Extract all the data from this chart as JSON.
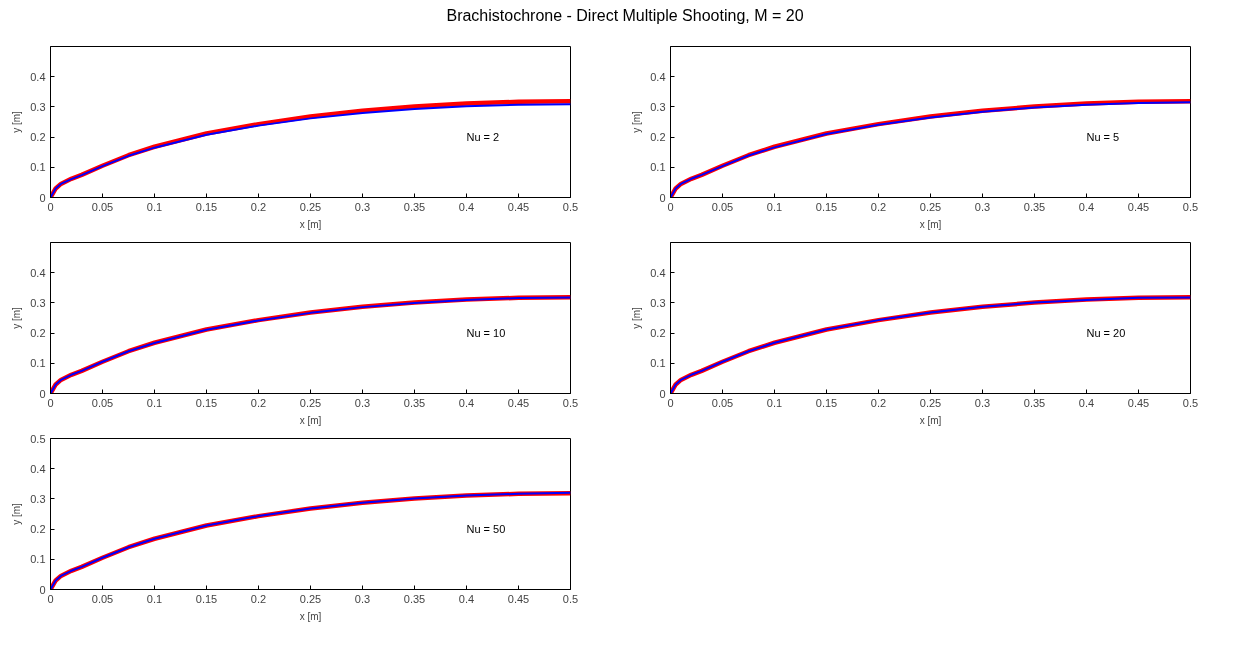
{
  "chart_data": [
    {
      "type": "line",
      "title": "Brachistochrone - Direct Multiple Shooting, M = 20",
      "xlabel": "x [m]",
      "ylabel": "y [m]",
      "annotations": [
        "Nu = 2"
      ],
      "xlim": [
        0,
        0.5
      ],
      "ylim": [
        0,
        0.5
      ],
      "xticks": [
        0,
        0.05,
        0.1,
        0.15,
        0.2,
        0.25,
        0.3,
        0.35,
        0.4,
        0.45,
        0.5
      ],
      "yticks": [
        0,
        0.1,
        0.2,
        0.3,
        0.4
      ],
      "grid": false,
      "x": [
        0,
        0.005,
        0.01,
        0.02,
        0.03,
        0.05,
        0.075,
        0.1,
        0.15,
        0.2,
        0.25,
        0.3,
        0.35,
        0.4,
        0.45,
        0.5
      ],
      "series": [
        {
          "color": "#ff0000",
          "values": [
            0,
            0.03,
            0.045,
            0.062,
            0.075,
            0.105,
            0.14,
            0.168,
            0.212,
            0.243,
            0.268,
            0.287,
            0.301,
            0.311,
            0.317,
            0.319
          ]
        },
        {
          "color": "#0000ff",
          "values": [
            0,
            0.03,
            0.045,
            0.061,
            0.074,
            0.104,
            0.138,
            0.165,
            0.208,
            0.238,
            0.262,
            0.28,
            0.293,
            0.302,
            0.307,
            0.309
          ]
        }
      ]
    },
    {
      "type": "line",
      "xlabel": "x [m]",
      "ylabel": "y [m]",
      "annotations": [
        "Nu = 5"
      ],
      "xlim": [
        0,
        0.5
      ],
      "ylim": [
        0,
        0.5
      ],
      "xticks": [
        0,
        0.05,
        0.1,
        0.15,
        0.2,
        0.25,
        0.3,
        0.35,
        0.4,
        0.45,
        0.5
      ],
      "yticks": [
        0,
        0.1,
        0.2,
        0.3,
        0.4
      ],
      "grid": false,
      "x": [
        0,
        0.005,
        0.01,
        0.02,
        0.03,
        0.05,
        0.075,
        0.1,
        0.15,
        0.2,
        0.25,
        0.3,
        0.35,
        0.4,
        0.45,
        0.5
      ],
      "series": [
        {
          "color": "#ff0000",
          "values": [
            0,
            0.03,
            0.045,
            0.062,
            0.075,
            0.105,
            0.14,
            0.168,
            0.212,
            0.243,
            0.268,
            0.287,
            0.301,
            0.311,
            0.317,
            0.319
          ]
        },
        {
          "color": "#0000ff",
          "values": [
            0,
            0.03,
            0.045,
            0.062,
            0.075,
            0.104,
            0.139,
            0.166,
            0.21,
            0.241,
            0.265,
            0.284,
            0.298,
            0.307,
            0.313,
            0.315
          ]
        }
      ]
    },
    {
      "type": "line",
      "xlabel": "x [m]",
      "ylabel": "y [m]",
      "annotations": [
        "Nu = 10"
      ],
      "xlim": [
        0,
        0.5
      ],
      "ylim": [
        0,
        0.5
      ],
      "xticks": [
        0,
        0.05,
        0.1,
        0.15,
        0.2,
        0.25,
        0.3,
        0.35,
        0.4,
        0.45,
        0.5
      ],
      "yticks": [
        0,
        0.1,
        0.2,
        0.3,
        0.4
      ],
      "grid": false,
      "x": [
        0,
        0.005,
        0.01,
        0.02,
        0.03,
        0.05,
        0.075,
        0.1,
        0.15,
        0.2,
        0.25,
        0.3,
        0.35,
        0.4,
        0.45,
        0.5
      ],
      "series": [
        {
          "color": "#ff0000",
          "values": [
            0,
            0.03,
            0.045,
            0.062,
            0.075,
            0.105,
            0.14,
            0.168,
            0.212,
            0.243,
            0.268,
            0.287,
            0.301,
            0.311,
            0.317,
            0.319
          ]
        },
        {
          "color": "#0000ff",
          "values": [
            0,
            0.03,
            0.045,
            0.062,
            0.075,
            0.105,
            0.14,
            0.167,
            0.211,
            0.242,
            0.267,
            0.286,
            0.3,
            0.31,
            0.316,
            0.318
          ]
        }
      ]
    },
    {
      "type": "line",
      "xlabel": "x [m]",
      "ylabel": "y [m]",
      "annotations": [
        "Nu = 20"
      ],
      "xlim": [
        0,
        0.5
      ],
      "ylim": [
        0,
        0.5
      ],
      "xticks": [
        0,
        0.05,
        0.1,
        0.15,
        0.2,
        0.25,
        0.3,
        0.35,
        0.4,
        0.45,
        0.5
      ],
      "yticks": [
        0,
        0.1,
        0.2,
        0.3,
        0.4
      ],
      "grid": false,
      "x": [
        0,
        0.005,
        0.01,
        0.02,
        0.03,
        0.05,
        0.075,
        0.1,
        0.15,
        0.2,
        0.25,
        0.3,
        0.35,
        0.4,
        0.45,
        0.5
      ],
      "series": [
        {
          "color": "#ff0000",
          "values": [
            0,
            0.03,
            0.045,
            0.062,
            0.075,
            0.105,
            0.14,
            0.168,
            0.212,
            0.243,
            0.268,
            0.287,
            0.301,
            0.311,
            0.317,
            0.319
          ]
        },
        {
          "color": "#0000ff",
          "values": [
            0,
            0.03,
            0.045,
            0.062,
            0.075,
            0.105,
            0.14,
            0.168,
            0.212,
            0.243,
            0.268,
            0.287,
            0.301,
            0.31,
            0.317,
            0.318
          ]
        }
      ]
    },
    {
      "type": "line",
      "xlabel": "x [m]",
      "ylabel": "y [m]",
      "annotations": [
        "Nu = 50"
      ],
      "xlim": [
        0,
        0.5
      ],
      "ylim": [
        0,
        0.5
      ],
      "xticks": [
        0,
        0.05,
        0.1,
        0.15,
        0.2,
        0.25,
        0.3,
        0.35,
        0.4,
        0.45,
        0.5
      ],
      "yticks": [
        0,
        0.1,
        0.2,
        0.3,
        0.4,
        0.5
      ],
      "grid": false,
      "x": [
        0,
        0.005,
        0.01,
        0.02,
        0.03,
        0.05,
        0.075,
        0.1,
        0.15,
        0.2,
        0.25,
        0.3,
        0.35,
        0.4,
        0.45,
        0.5
      ],
      "series": [
        {
          "color": "#ff0000",
          "values": [
            0,
            0.03,
            0.045,
            0.062,
            0.075,
            0.105,
            0.14,
            0.168,
            0.212,
            0.243,
            0.268,
            0.287,
            0.301,
            0.311,
            0.317,
            0.319
          ]
        },
        {
          "color": "#0000ff",
          "values": [
            0,
            0.03,
            0.045,
            0.062,
            0.075,
            0.105,
            0.14,
            0.168,
            0.212,
            0.243,
            0.268,
            0.287,
            0.301,
            0.311,
            0.317,
            0.32
          ]
        }
      ]
    }
  ]
}
